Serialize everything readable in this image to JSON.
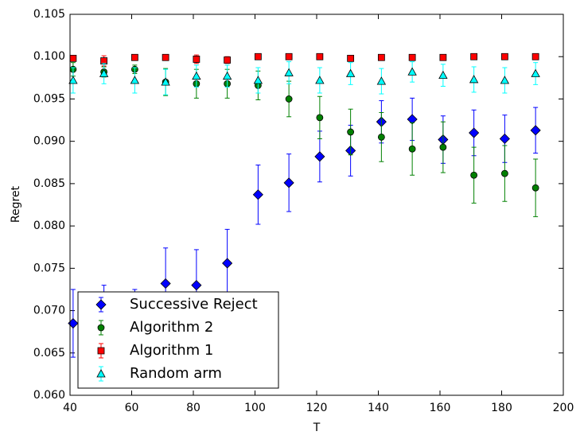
{
  "chart_data": {
    "type": "errorbar-scatter",
    "x_label": "T",
    "y_label": "Regret",
    "x": [
      41,
      51,
      61,
      71,
      81,
      91,
      101,
      111,
      121,
      131,
      141,
      151,
      161,
      171,
      181,
      191
    ],
    "series": [
      {
        "name": "Successive Reject",
        "color": "#0000ff",
        "marker": "diamond",
        "values": [
          0.0685,
          0.069,
          0.0695,
          0.0732,
          0.073,
          0.0756,
          0.0837,
          0.0851,
          0.0882,
          0.0889,
          0.0923,
          0.0926,
          0.0902,
          0.091,
          0.0903,
          0.0913
        ],
        "errors": [
          0.004,
          0.004,
          0.003,
          0.0042,
          0.0042,
          0.004,
          0.0035,
          0.0034,
          0.003,
          0.003,
          0.0025,
          0.0025,
          0.0028,
          0.0027,
          0.0028,
          0.0027
        ]
      },
      {
        "name": "Algorithm 2",
        "color": "#008000",
        "marker": "circle",
        "values": [
          0.0985,
          0.0982,
          0.0985,
          0.097,
          0.0968,
          0.0968,
          0.0966,
          0.095,
          0.0928,
          0.0911,
          0.0905,
          0.0891,
          0.0893,
          0.086,
          0.0862,
          0.0845
        ],
        "errors": [
          0.0008,
          0.0006,
          0.0005,
          0.0016,
          0.0017,
          0.0017,
          0.0017,
          0.0021,
          0.0025,
          0.0027,
          0.0029,
          0.0031,
          0.003,
          0.0033,
          0.0033,
          0.0034
        ]
      },
      {
        "name": "Algorithm 1",
        "color": "#ff0000",
        "marker": "square",
        "values": [
          0.0998,
          0.0995,
          0.0999,
          0.0999,
          0.0997,
          0.0996,
          0.1,
          0.1,
          0.1,
          0.0998,
          0.0999,
          0.0999,
          0.0999,
          0.1,
          0.1,
          0.1
        ],
        "errors": [
          0.0003,
          0.0006,
          0.0001,
          0.0001,
          0.0005,
          0.0004,
          0.0001,
          0.0001,
          0.0001,
          0.0002,
          0.0001,
          0.0001,
          0.0001,
          0.0001,
          0.0001,
          0.0001
        ]
      },
      {
        "name": "Random arm",
        "color": "#00ffff",
        "marker": "triangle",
        "values": [
          0.0972,
          0.098,
          0.0972,
          0.097,
          0.0977,
          0.0977,
          0.0972,
          0.0981,
          0.0972,
          0.098,
          0.0971,
          0.0982,
          0.0978,
          0.0973,
          0.0972,
          0.098
        ],
        "errors": [
          0.0015,
          0.0012,
          0.0015,
          0.0015,
          0.0013,
          0.0013,
          0.0015,
          0.0013,
          0.0015,
          0.0013,
          0.0015,
          0.0012,
          0.0013,
          0.0015,
          0.0015,
          0.0013
        ]
      }
    ],
    "xlim": [
      40,
      200
    ],
    "xticks": [
      40,
      60,
      80,
      100,
      120,
      140,
      160,
      180,
      200
    ],
    "ylim": [
      0.06,
      0.105
    ],
    "yticks": [
      {
        "value": 0.06,
        "label": "0.060"
      },
      {
        "value": 0.065,
        "label": "0.065"
      },
      {
        "value": 0.07,
        "label": "0.070"
      },
      {
        "value": 0.075,
        "label": "0.075"
      },
      {
        "value": 0.08,
        "label": "0.080"
      },
      {
        "value": 0.085,
        "label": "0.085"
      },
      {
        "value": 0.09,
        "label": "0.090"
      },
      {
        "value": 0.095,
        "label": "0.095"
      },
      {
        "value": 0.1,
        "label": "0.100"
      },
      {
        "value": 0.105,
        "label": "0.105"
      }
    ],
    "legend": "lower left",
    "grid": false
  }
}
